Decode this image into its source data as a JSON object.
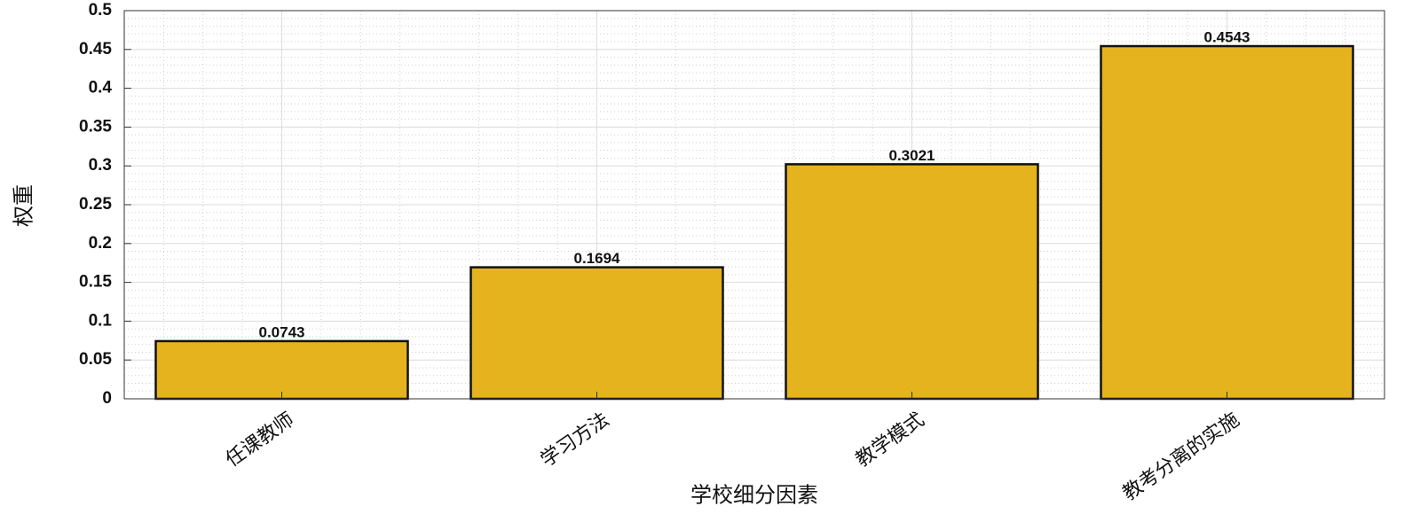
{
  "chart_data": {
    "type": "bar",
    "xlabel": "学校细分因素",
    "ylabel": "权重",
    "categories": [
      "任课教师",
      "学习方法",
      "教学模式",
      "教考分离的实施"
    ],
    "values": [
      0.0743,
      0.1694,
      0.3021,
      0.4543
    ],
    "color": "#e5b31e",
    "ylim": [
      0,
      0.5
    ],
    "yticks": [
      0,
      0.05,
      0.1,
      0.15,
      0.2,
      0.25,
      0.3,
      0.35,
      0.4,
      0.45,
      0.5
    ],
    "grid": true,
    "minor_grid": true
  }
}
